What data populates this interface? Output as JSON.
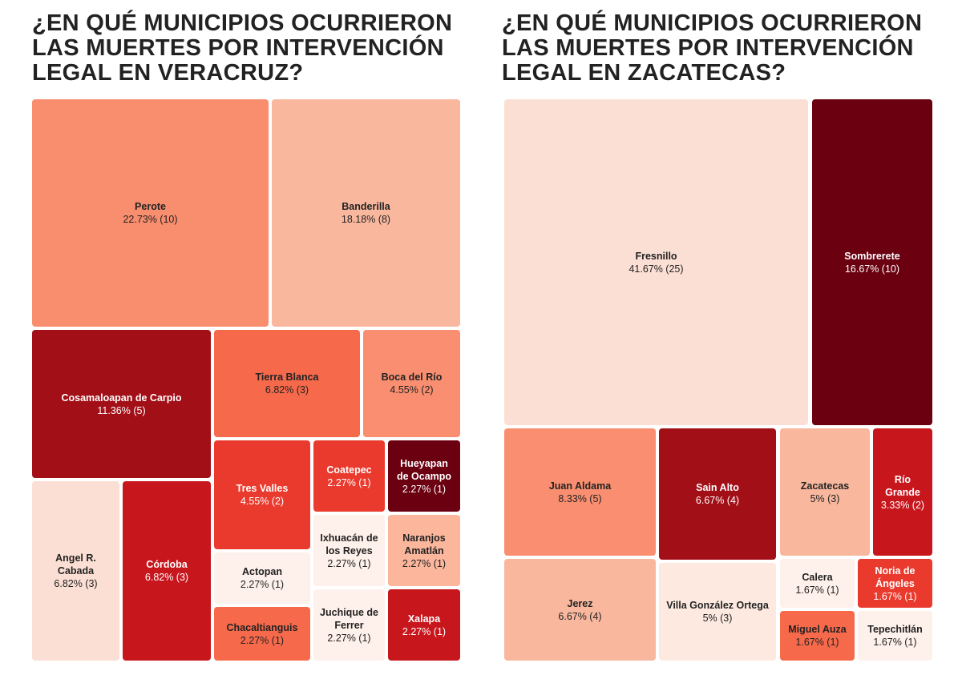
{
  "chart_data": [
    {
      "type": "treemap",
      "title": "¿EN QUÉ MUNICIPIOS OCURRIERON LAS MUERTES POR INTERVENCIÓN LEGAL EN VERACRUZ?",
      "categories": [
        "Perote",
        "Banderilla",
        "Cosamaloapan de Carpio",
        "Tierra Blanca",
        "Boca del Río",
        "Angel R. Cabada",
        "Córdoba",
        "Tres Valles",
        "Coatepec",
        "Hueyapan de Ocampo",
        "Ixhuacán de los Reyes",
        "Naranjos Amatlán",
        "Actopan",
        "Chacaltianguis",
        "Juchique de Ferrer",
        "Xalapa"
      ],
      "values": [
        10,
        8,
        5,
        3,
        2,
        3,
        3,
        2,
        1,
        1,
        1,
        1,
        1,
        1,
        1,
        1
      ],
      "value_labels": [
        "22.73% (10)",
        "18.18% (8)",
        "11.36% (5)",
        "6.82% (3)",
        "4.55% (2)",
        "6.82% (3)",
        "6.82% (3)",
        "4.55% (2)",
        "2.27% (1)",
        "2.27% (1)",
        "2.27% (1)",
        "2.27% (1)",
        "2.27% (1)",
        "2.27% (1)",
        "2.27% (1)",
        "2.27% (1)"
      ],
      "colors": [
        "#f98e6e",
        "#f9b89e",
        "#a20f17",
        "#f7694b",
        "#f98f70",
        "#fcdfd4",
        "#c8161d",
        "#ea3a2d",
        "#ea3a2d",
        "#6a0010",
        "#fef0ea",
        "#fbb69c",
        "#fef0ea",
        "#f7694b",
        "#fef0ea",
        "#c8161d"
      ]
    },
    {
      "type": "treemap",
      "title": "¿EN QUÉ MUNICIPIOS OCURRIERON LAS MUERTES POR INTERVENCIÓN LEGAL EN ZACATECAS?",
      "categories": [
        "Fresnillo",
        "Sombrerete",
        "Juan Aldama",
        "Sain Alto",
        "Zacatecas",
        "Río Grande",
        "Jerez",
        "Villa González Ortega",
        "Calera",
        "Noria de Ángeles",
        "Miguel Auza",
        "Tepechitlán"
      ],
      "values": [
        25,
        10,
        5,
        4,
        3,
        2,
        4,
        3,
        1,
        1,
        1,
        1
      ],
      "value_labels": [
        "41.67% (25)",
        "16.67% (10)",
        "8.33% (5)",
        "6.67% (4)",
        "5% (3)",
        "3.33% (2)",
        "6.67% (4)",
        "5% (3)",
        "1.67% (1)",
        "1.67% (1)",
        "1.67% (1)",
        "1.67% (1)"
      ],
      "colors": [
        "#fcdfd4",
        "#6a0010",
        "#f98f70",
        "#a20f17",
        "#f9b89e",
        "#c8161d",
        "#f9b89e",
        "#fde9e0",
        "#fef0ea",
        "#ea3a2d",
        "#f7694b",
        "#fef0ea"
      ]
    }
  ]
}
